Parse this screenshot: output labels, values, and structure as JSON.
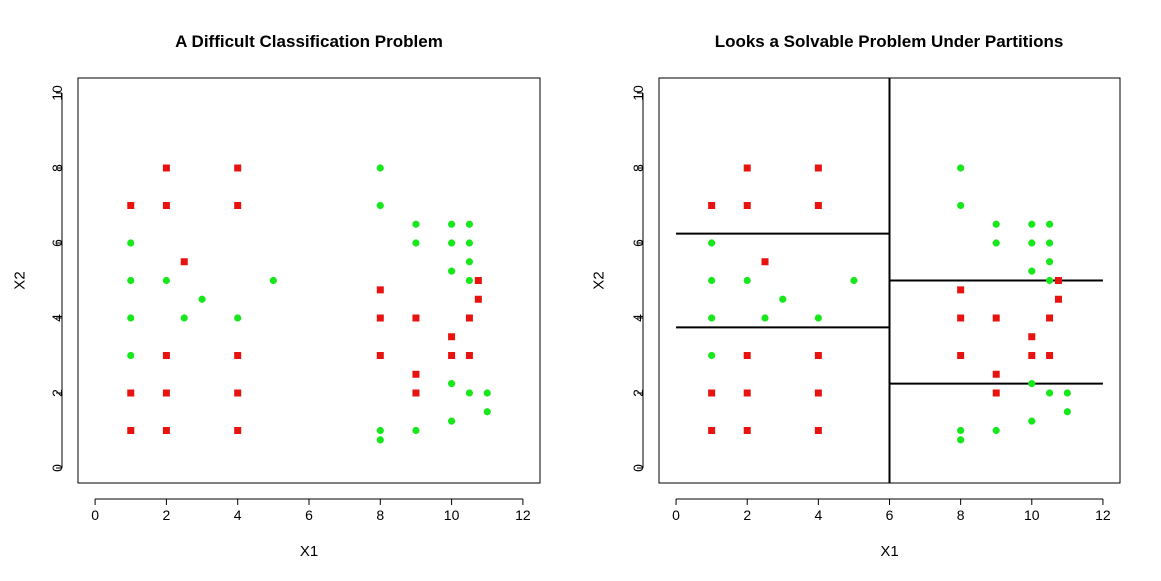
{
  "chart_data": [
    {
      "type": "scatter",
      "title": "A Difficult Classification Problem",
      "xlabel": "X1",
      "ylabel": "X2",
      "xlim": [
        0,
        12
      ],
      "ylim": [
        0,
        10
      ],
      "xticks": [
        "0",
        "2",
        "4",
        "6",
        "8",
        "10",
        "12"
      ],
      "yticks": [
        "0",
        "2",
        "4",
        "6",
        "8",
        "10"
      ],
      "colors": {
        "red": "#e8120f",
        "green": "#17e81c"
      },
      "red_points": [
        [
          1,
          7
        ],
        [
          1,
          2
        ],
        [
          1,
          1
        ],
        [
          2,
          8
        ],
        [
          2,
          7
        ],
        [
          2,
          3
        ],
        [
          2,
          2
        ],
        [
          2,
          1
        ],
        [
          2.5,
          5.5
        ],
        [
          4,
          8
        ],
        [
          4,
          7
        ],
        [
          4,
          3
        ],
        [
          4,
          2
        ],
        [
          4,
          1
        ],
        [
          8,
          4.75
        ],
        [
          8,
          4
        ],
        [
          8,
          3
        ],
        [
          9,
          4
        ],
        [
          9,
          2.5
        ],
        [
          9,
          2
        ],
        [
          10,
          3.5
        ],
        [
          10,
          3
        ],
        [
          10.5,
          4
        ],
        [
          10.5,
          3
        ],
        [
          10.75,
          5
        ],
        [
          10.75,
          4.5
        ]
      ],
      "green_points": [
        [
          1,
          6
        ],
        [
          1,
          5
        ],
        [
          1,
          4
        ],
        [
          1,
          3
        ],
        [
          2,
          5
        ],
        [
          2.5,
          4
        ],
        [
          3,
          4.5
        ],
        [
          4,
          4
        ],
        [
          5,
          5
        ],
        [
          8,
          8
        ],
        [
          8,
          7
        ],
        [
          8,
          1
        ],
        [
          8,
          0.75
        ],
        [
          9,
          6.5
        ],
        [
          9,
          6
        ],
        [
          9,
          1
        ],
        [
          10,
          6.5
        ],
        [
          10,
          6
        ],
        [
          10,
          5.25
        ],
        [
          10,
          2.25
        ],
        [
          10,
          1.25
        ],
        [
          10.5,
          6.5
        ],
        [
          10.5,
          6
        ],
        [
          10.5,
          5.5
        ],
        [
          10.5,
          5
        ],
        [
          10.5,
          2
        ],
        [
          11,
          2
        ],
        [
          11,
          1.5
        ]
      ]
    },
    {
      "type": "scatter",
      "title": "Looks a Solvable Problem Under Partitions",
      "xlabel": "X1",
      "ylabel": "X2",
      "xlim": [
        0,
        12
      ],
      "ylim": [
        0,
        10
      ],
      "xticks": [
        "0",
        "2",
        "4",
        "6",
        "8",
        "10",
        "12"
      ],
      "yticks": [
        "0",
        "2",
        "4",
        "6",
        "8",
        "10"
      ],
      "colors": {
        "red": "#e8120f",
        "green": "#17e81c"
      },
      "red_points": [
        [
          1,
          7
        ],
        [
          1,
          2
        ],
        [
          1,
          1
        ],
        [
          2,
          8
        ],
        [
          2,
          7
        ],
        [
          2,
          3
        ],
        [
          2,
          2
        ],
        [
          2,
          1
        ],
        [
          2.5,
          5.5
        ],
        [
          4,
          8
        ],
        [
          4,
          7
        ],
        [
          4,
          3
        ],
        [
          4,
          2
        ],
        [
          4,
          1
        ],
        [
          8,
          4.75
        ],
        [
          8,
          4
        ],
        [
          8,
          3
        ],
        [
          9,
          4
        ],
        [
          9,
          2.5
        ],
        [
          9,
          2
        ],
        [
          10,
          3.5
        ],
        [
          10,
          3
        ],
        [
          10.5,
          4
        ],
        [
          10.5,
          3
        ],
        [
          10.75,
          5
        ],
        [
          10.75,
          4.5
        ]
      ],
      "green_points": [
        [
          1,
          6
        ],
        [
          1,
          5
        ],
        [
          1,
          4
        ],
        [
          1,
          3
        ],
        [
          2,
          5
        ],
        [
          2.5,
          4
        ],
        [
          3,
          4.5
        ],
        [
          4,
          4
        ],
        [
          5,
          5
        ],
        [
          8,
          8
        ],
        [
          8,
          7
        ],
        [
          8,
          1
        ],
        [
          8,
          0.75
        ],
        [
          9,
          6.5
        ],
        [
          9,
          6
        ],
        [
          9,
          1
        ],
        [
          10,
          6.5
        ],
        [
          10,
          6
        ],
        [
          10,
          5.25
        ],
        [
          10,
          2.25
        ],
        [
          10,
          1.25
        ],
        [
          10.5,
          6.5
        ],
        [
          10.5,
          6
        ],
        [
          10.5,
          5.5
        ],
        [
          10.5,
          5
        ],
        [
          10.5,
          2
        ],
        [
          11,
          2
        ],
        [
          11,
          1.5
        ]
      ],
      "partition_lines": [
        {
          "x1": 6,
          "y1": -0.4,
          "x2": 6,
          "y2": 10.4
        },
        {
          "x1": 0,
          "y1": 6.25,
          "x2": 6,
          "y2": 6.25
        },
        {
          "x1": 0,
          "y1": 3.75,
          "x2": 6,
          "y2": 3.75
        },
        {
          "x1": 6,
          "y1": 5.0,
          "x2": 12,
          "y2": 5.0
        },
        {
          "x1": 6,
          "y1": 2.25,
          "x2": 12,
          "y2": 2.25
        }
      ]
    }
  ]
}
